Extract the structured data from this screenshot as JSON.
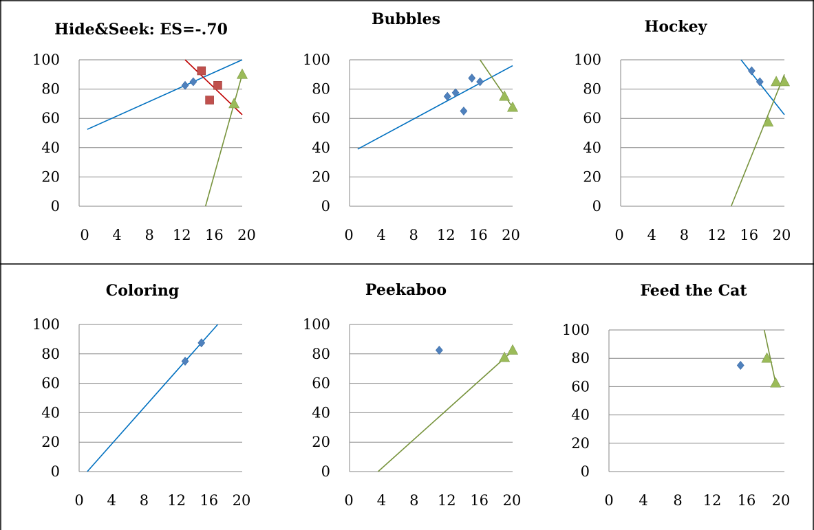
{
  "colors": {
    "blue": "#4f81bd",
    "red": "#c0504d",
    "green": "#9bbb59",
    "blue_line": "#0070c0",
    "red_line": "#c00000",
    "green_line": "#77933c",
    "grid": "#868686"
  },
  "chart_data": [
    {
      "type": "scatter",
      "title": "Hide&Seek: ES=-.70",
      "xlim": [
        0,
        20
      ],
      "ylim": [
        0,
        100
      ],
      "xticks": [
        0,
        4,
        8,
        12,
        16,
        20
      ],
      "yticks": [
        0,
        20,
        40,
        60,
        80,
        100
      ],
      "grid": true,
      "series": [
        {
          "marker": "diamond",
          "color": "#4f81bd",
          "line_color": "#0070c0",
          "points": [
            [
              13,
              82.5
            ],
            [
              14,
              85
            ]
          ],
          "trend": [
            [
              1,
              52.5
            ],
            [
              20,
              100
            ]
          ]
        },
        {
          "marker": "square",
          "color": "#c0504d",
          "line_color": "#c00000",
          "points": [
            [
              15,
              92.5
            ],
            [
              16,
              72.5
            ],
            [
              17,
              82.5
            ]
          ],
          "trend": [
            [
              13,
              100
            ],
            [
              20,
              62.5
            ]
          ]
        },
        {
          "marker": "triangle",
          "color": "#9bbb59",
          "line_color": "#77933c",
          "points": [
            [
              19,
              70
            ],
            [
              20,
              90
            ]
          ],
          "trend": [
            [
              15.5,
              0
            ],
            [
              20,
              90
            ]
          ]
        }
      ]
    },
    {
      "type": "scatter",
      "title": "Bubbles",
      "xlim": [
        0,
        20
      ],
      "ylim": [
        0,
        100
      ],
      "xticks": [
        0,
        4,
        8,
        12,
        16,
        20
      ],
      "yticks": [
        0,
        20,
        40,
        60,
        80,
        100
      ],
      "grid": true,
      "series": [
        {
          "marker": "diamond",
          "color": "#4f81bd",
          "line_color": "#0070c0",
          "points": [
            [
              12,
              75
            ],
            [
              13,
              77.5
            ],
            [
              14,
              65
            ],
            [
              15,
              87.5
            ],
            [
              16,
              85
            ]
          ],
          "trend": [
            [
              1,
              39
            ],
            [
              20,
              96
            ]
          ]
        },
        {
          "marker": "triangle",
          "color": "#9bbb59",
          "line_color": "#77933c",
          "points": [
            [
              19,
              75
            ],
            [
              20,
              67.5
            ]
          ],
          "trend": [
            [
              16,
              100
            ],
            [
              20,
              67.5
            ]
          ]
        }
      ]
    },
    {
      "type": "scatter",
      "title": "Hockey",
      "xlim": [
        0,
        20
      ],
      "ylim": [
        0,
        100
      ],
      "xticks": [
        0,
        4,
        8,
        12,
        16,
        20
      ],
      "yticks": [
        0,
        20,
        40,
        60,
        80,
        100
      ],
      "grid": true,
      "series": [
        {
          "marker": "diamond",
          "color": "#4f81bd",
          "line_color": "#0070c0",
          "points": [
            [
              16,
              92.5
            ],
            [
              17,
              85
            ]
          ],
          "trend": [
            [
              14.7,
              100
            ],
            [
              20,
              62.5
            ]
          ]
        },
        {
          "marker": "triangle",
          "color": "#9bbb59",
          "line_color": "#77933c",
          "points": [
            [
              18,
              57.5
            ],
            [
              19,
              85
            ],
            [
              20,
              85
            ]
          ],
          "trend": [
            [
              13.5,
              0
            ],
            [
              20,
              90
            ]
          ]
        }
      ]
    },
    {
      "type": "scatter",
      "title": "Coloring",
      "xlim": [
        0,
        20
      ],
      "ylim": [
        0,
        100
      ],
      "xticks": [
        0,
        4,
        8,
        12,
        16,
        20
      ],
      "yticks": [
        0,
        20,
        40,
        60,
        80,
        100
      ],
      "grid": true,
      "series": [
        {
          "marker": "diamond",
          "color": "#4f81bd",
          "line_color": "#0070c0",
          "points": [
            [
              13,
              75
            ],
            [
              15,
              87.5
            ]
          ],
          "trend": [
            [
              1,
              0
            ],
            [
              17,
              100
            ]
          ]
        }
      ]
    },
    {
      "type": "scatter",
      "title": "Peekaboo",
      "xlim": [
        0,
        20
      ],
      "ylim": [
        0,
        100
      ],
      "xticks": [
        0,
        4,
        8,
        12,
        16,
        20
      ],
      "yticks": [
        0,
        20,
        40,
        60,
        80,
        100
      ],
      "grid": true,
      "series": [
        {
          "marker": "diamond",
          "color": "#4f81bd",
          "line_color": "#0070c0",
          "points": [
            [
              11,
              82.5
            ]
          ],
          "trend": []
        },
        {
          "marker": "triangle",
          "color": "#9bbb59",
          "line_color": "#77933c",
          "points": [
            [
              19,
              77.5
            ],
            [
              20,
              82.5
            ]
          ],
          "trend": [
            [
              3.5,
              0
            ],
            [
              20,
              82
            ]
          ]
        }
      ]
    },
    {
      "type": "scatter",
      "title": "Feed the Cat",
      "xlim": [
        0,
        20
      ],
      "ylim": [
        0,
        100
      ],
      "xticks": [
        0,
        4,
        8,
        12,
        16,
        20
      ],
      "yticks": [
        0,
        20,
        40,
        60,
        80,
        100
      ],
      "grid": true,
      "series": [
        {
          "marker": "diamond",
          "color": "#4f81bd",
          "line_color": "#0070c0",
          "points": [
            [
              15,
              75
            ]
          ],
          "trend": []
        },
        {
          "marker": "triangle",
          "color": "#9bbb59",
          "line_color": "#77933c",
          "points": [
            [
              18,
              80
            ],
            [
              19,
              62.5
            ]
          ],
          "trend": [
            [
              17.7,
              100
            ],
            [
              19,
              62.5
            ]
          ]
        }
      ]
    }
  ]
}
